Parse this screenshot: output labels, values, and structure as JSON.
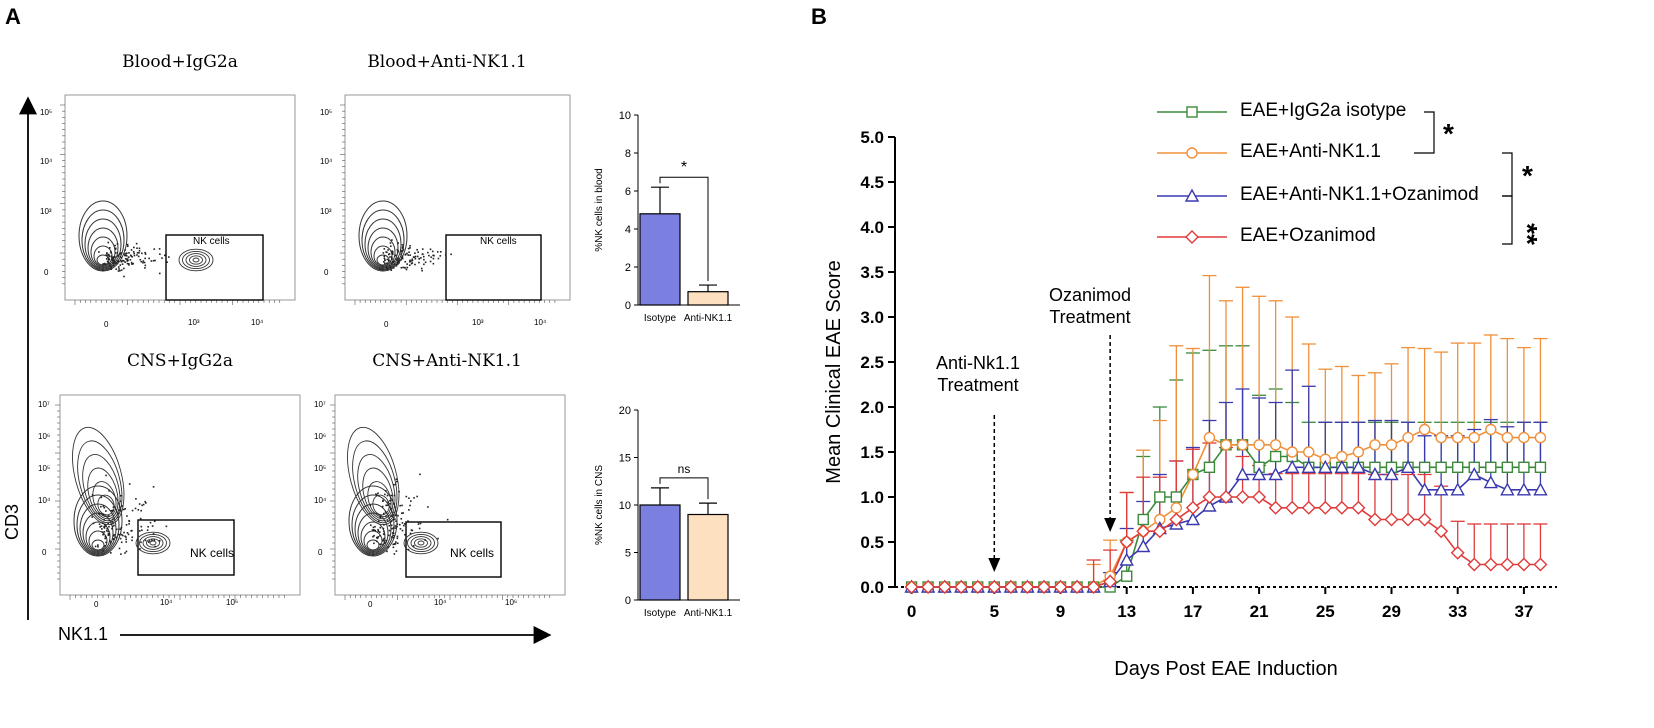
{
  "panel_a": {
    "letter": "A",
    "flow_titles": [
      "Blood+IgG2a",
      "Blood+Anti-NK1.1",
      "CNS+IgG2a",
      "CNS+Anti-NK1.1"
    ],
    "gate_label": "NK cells",
    "y_axis_name": "CD3",
    "x_axis_name": "NK1.1",
    "blood_ticks": {
      "y": [
        "10⁵",
        "10⁴",
        "10³",
        "0"
      ],
      "x": [
        "0",
        "10³",
        "10⁴"
      ]
    },
    "cns_ticks": {
      "y": [
        "10⁷",
        "10⁶",
        "10⁵",
        "10⁴",
        "0"
      ],
      "x": [
        "0",
        "10⁴",
        "10⁶"
      ]
    }
  },
  "panel_b": {
    "letter": "B",
    "annotations": {
      "anti_nk": [
        "Anti-Nk1.1",
        "Treatment"
      ],
      "ozanimod": [
        "Ozanimod",
        "Treatment"
      ]
    },
    "significance": [
      "*",
      "*",
      "**"
    ]
  },
  "chart_data": [
    {
      "type": "bar",
      "title": "",
      "ylabel": "%NK cells in blood",
      "categories": [
        "Isotype",
        "Anti-NK1.1"
      ],
      "values": [
        4.8,
        0.7
      ],
      "errors": [
        1.4,
        0.35
      ],
      "ylim": [
        0,
        10
      ],
      "yticks": [
        "0",
        "2",
        "4",
        "6",
        "8",
        "10"
      ],
      "significance": "*",
      "colors": [
        "#7b7fe0",
        "#fde0bf"
      ]
    },
    {
      "type": "bar",
      "title": "",
      "ylabel": "%NK cells in CNS",
      "categories": [
        "Isotype",
        "Anti-NK1.1"
      ],
      "values": [
        10.0,
        9.0
      ],
      "errors": [
        1.8,
        1.2
      ],
      "ylim": [
        0,
        20
      ],
      "yticks": [
        "0",
        "5",
        "10",
        "15",
        "20"
      ],
      "significance": "ns",
      "colors": [
        "#7b7fe0",
        "#fde0bf"
      ]
    },
    {
      "type": "line",
      "title": "",
      "xlabel": "Days Post EAE Induction",
      "ylabel": "Mean Clinical EAE Score",
      "xlim": [
        -1,
        39
      ],
      "ylim": [
        0,
        5
      ],
      "xticks": [
        "0",
        "5",
        "9",
        "13",
        "17",
        "21",
        "25",
        "29",
        "33",
        "37"
      ],
      "yticks": [
        "0.0",
        "0.5",
        "1.0",
        "1.5",
        "2.0",
        "2.5",
        "3.0",
        "3.5",
        "4.0",
        "4.5",
        "5.0"
      ],
      "x": [
        0,
        1,
        2,
        3,
        4,
        5,
        6,
        7,
        8,
        9,
        10,
        11,
        12,
        13,
        14,
        15,
        16,
        17,
        18,
        19,
        20,
        21,
        22,
        23,
        24,
        25,
        26,
        27,
        28,
        29,
        30,
        31,
        32,
        33,
        34,
        35,
        36,
        37,
        38
      ],
      "series": [
        {
          "name": "EAE+IgG2a isotype",
          "marker": "square",
          "color": "#3a8a3a",
          "values": [
            0,
            0,
            0,
            0,
            0,
            0,
            0,
            0,
            0,
            0,
            0,
            0,
            0,
            0.12,
            0.75,
            1.0,
            1.0,
            1.25,
            1.33,
            1.58,
            1.58,
            1.33,
            1.45,
            1.45,
            1.33,
            1.33,
            1.33,
            1.33,
            1.33,
            1.33,
            1.33,
            1.33,
            1.33,
            1.33,
            1.33,
            1.33,
            1.33,
            1.33,
            1.33
          ],
          "errors": [
            0,
            0,
            0,
            0,
            0,
            0,
            0,
            0,
            0,
            0,
            0,
            0,
            0,
            0.4,
            0.7,
            1.0,
            1.3,
            1.35,
            1.3,
            1.1,
            1.1,
            0.8,
            0.75,
            0.6,
            0.5,
            0.5,
            0.5,
            0.5,
            0.5,
            0.5,
            0.5,
            0.5,
            0.5,
            0.5,
            0.5,
            0.5,
            0.5,
            0.5,
            0.5
          ]
        },
        {
          "name": "EAE+Anti-NK1.1",
          "marker": "circle",
          "color": "#f0903a",
          "values": [
            0,
            0,
            0,
            0,
            0,
            0,
            0,
            0,
            0,
            0,
            0,
            0,
            0.12,
            0.5,
            0.62,
            0.75,
            0.88,
            1.25,
            1.66,
            1.58,
            1.58,
            1.58,
            1.58,
            1.5,
            1.5,
            1.42,
            1.45,
            1.5,
            1.58,
            1.58,
            1.66,
            1.75,
            1.66,
            1.66,
            1.66,
            1.75,
            1.66,
            1.66,
            1.66
          ],
          "errors": [
            0,
            0,
            0,
            0,
            0,
            0,
            0,
            0,
            0,
            0,
            0,
            0.25,
            0.4,
            0.55,
            0.9,
            1.1,
            1.8,
            1.4,
            1.8,
            1.6,
            1.75,
            1.65,
            1.6,
            1.5,
            1.2,
            1.0,
            1.0,
            0.85,
            0.8,
            0.9,
            1.0,
            0.9,
            0.95,
            1.05,
            1.05,
            1.05,
            1.1,
            1.0,
            1.1
          ]
        },
        {
          "name": "EAE+Anti-NK1.1+Ozanimod",
          "marker": "triangle",
          "color": "#3a3ab0",
          "values": [
            0,
            0,
            0,
            0,
            0,
            0,
            0,
            0,
            0,
            0,
            0,
            0,
            0.06,
            0.3,
            0.45,
            0.65,
            0.7,
            0.75,
            0.9,
            1.0,
            1.25,
            1.25,
            1.25,
            1.33,
            1.33,
            1.33,
            1.33,
            1.33,
            1.25,
            1.25,
            1.33,
            1.08,
            1.08,
            1.08,
            1.25,
            1.16,
            1.08,
            1.08,
            1.08
          ],
          "errors": [
            0,
            0,
            0,
            0,
            0,
            0,
            0,
            0,
            0,
            0,
            0,
            0,
            0.1,
            0.35,
            0.5,
            0.6,
            0.7,
            0.8,
            0.95,
            1.05,
            0.95,
            0.85,
            0.8,
            1.08,
            0.9,
            0.5,
            0.5,
            0.5,
            0.6,
            0.6,
            0.5,
            0.6,
            0.6,
            0.6,
            0.5,
            0.7,
            0.7,
            0.75,
            0.75
          ]
        },
        {
          "name": "EAE+Ozanimod",
          "marker": "diamond",
          "color": "#e03a3a",
          "values": [
            0,
            0,
            0,
            0,
            0,
            0,
            0,
            0,
            0,
            0,
            0,
            0,
            0.06,
            0.5,
            0.62,
            0.62,
            0.75,
            0.88,
            1.0,
            1.0,
            1.0,
            1.0,
            0.88,
            0.88,
            0.88,
            0.88,
            0.88,
            0.88,
            0.75,
            0.75,
            0.75,
            0.75,
            0.62,
            0.38,
            0.25,
            0.25,
            0.25,
            0.25,
            0.25
          ],
          "errors": [
            0,
            0,
            0,
            0,
            0,
            0,
            0,
            0,
            0,
            0,
            0,
            0.3,
            0.35,
            0.55,
            0.6,
            0.6,
            0.65,
            0.65,
            0.6,
            0.55,
            0.45,
            0.35,
            0.38,
            0.38,
            0.38,
            0.38,
            0.38,
            0.38,
            0.5,
            0.5,
            0.5,
            0.5,
            0.5,
            0.35,
            0.45,
            0.45,
            0.45,
            0.45,
            0.45
          ]
        }
      ]
    }
  ]
}
